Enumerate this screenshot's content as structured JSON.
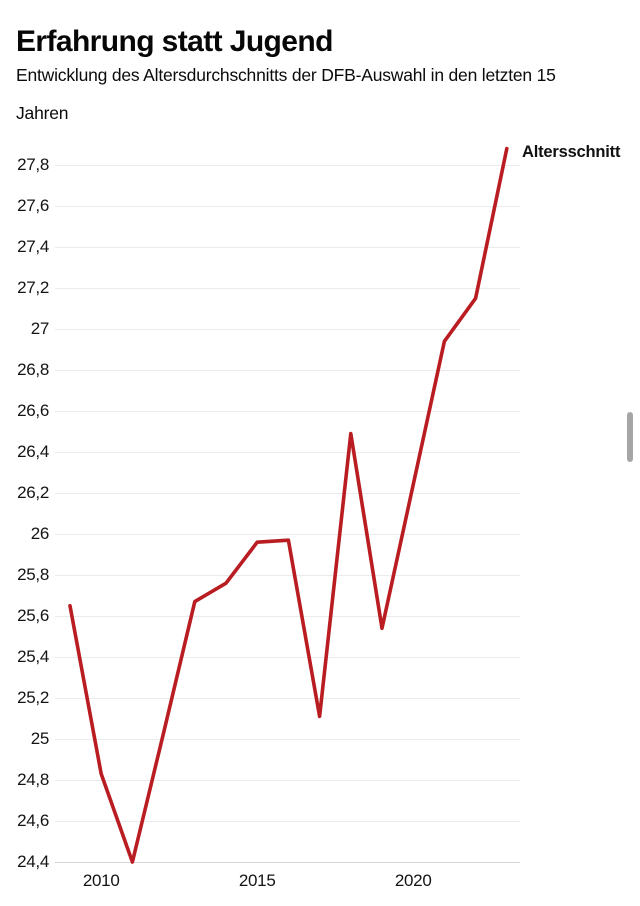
{
  "page": {
    "title": "Erfahrung statt Jugend",
    "subtitle_line1": "Entwicklung des Altersdurchschnitts der DFB-Auswahl in den letzten 15",
    "subtitle_line2": "Jahren"
  },
  "chart_data": {
    "type": "line",
    "title": "Erfahrung statt Jugend",
    "subtitle": "Entwicklung des Altersdurchschnitts der DFB-Auswahl in den letzten 15 Jahren",
    "xlabel": "",
    "ylabel": "",
    "x": [
      2009,
      2010,
      2011,
      2012,
      2013,
      2014,
      2015,
      2016,
      2017,
      2018,
      2019,
      2020,
      2021,
      2022,
      2023
    ],
    "series": [
      {
        "name": "Altersschnitt",
        "color": "#b91d22",
        "values": [
          25.65,
          24.83,
          24.4,
          25.03,
          25.67,
          25.76,
          25.96,
          25.97,
          25.11,
          26.49,
          25.54,
          26.24,
          26.94,
          27.15,
          27.88
        ]
      }
    ],
    "x_ticks": [
      2010,
      2015,
      2020
    ],
    "ylim": [
      24.4,
      27.8
    ],
    "y_tick_step": 0.2,
    "decimal_separator": ",",
    "grid": "horizontal",
    "legend_position": "end-of-line"
  },
  "colors": {
    "line": "#b91d22",
    "gridline": "#ebebeb",
    "baseline": "#d6d6d6",
    "tick_text": "#141414"
  }
}
